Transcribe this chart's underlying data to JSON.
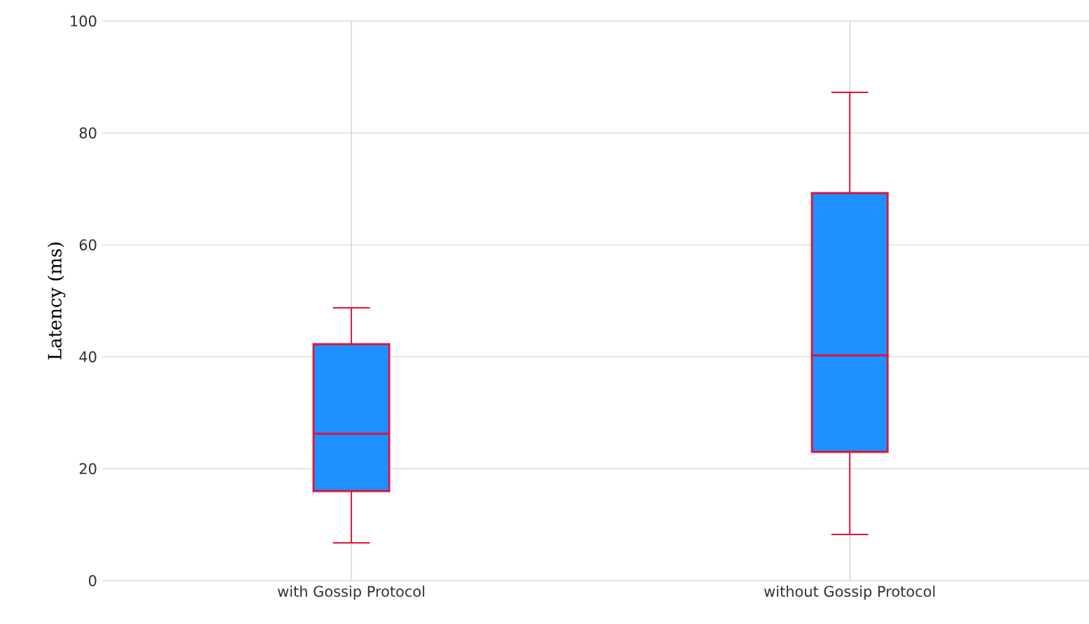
{
  "chart_data": {
    "type": "box",
    "ylabel": "Latency (ms)",
    "categories": [
      "with Gossip Protocol",
      "without Gossip Protocol"
    ],
    "boxes": [
      {
        "low": 6.75,
        "q1": 16,
        "median": 26.25,
        "q3": 42.25,
        "high": 48.75
      },
      {
        "low": 8.25,
        "q1": 23,
        "median": 40.25,
        "q3": 69.25,
        "high": 87.25
      }
    ],
    "color": "#1e90ff",
    "ylim": [
      0,
      100
    ],
    "yticks": [
      0,
      20,
      40,
      60,
      80,
      100
    ],
    "grid": true
  }
}
